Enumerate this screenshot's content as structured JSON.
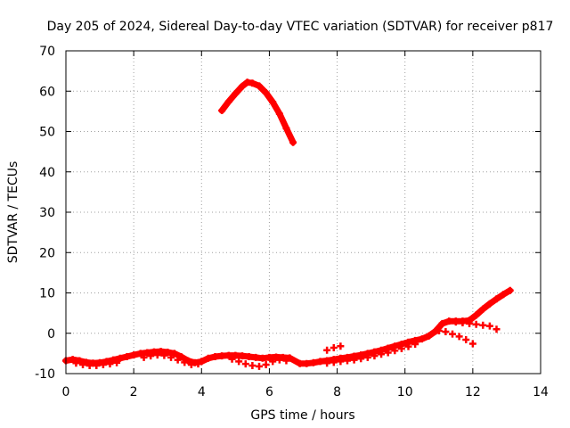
{
  "chart_data": {
    "type": "scatter",
    "title": "Day 205 of 2024, Sidereal Day-to-day VTEC variation (SDTVAR) for receiver p817",
    "xlabel": "GPS time / hours",
    "ylabel": "SDTVAR / TECUs",
    "xlim": [
      0,
      14
    ],
    "ylim": [
      -10,
      70
    ],
    "xticks": [
      "0",
      "2",
      "4",
      "6",
      "8",
      "10",
      "12",
      "14"
    ],
    "yticks": [
      "-10",
      "0",
      "10",
      "20",
      "30",
      "40",
      "50",
      "60",
      "70"
    ],
    "grid": true,
    "legend": "none",
    "marker_color": "#ff0000",
    "series": [
      {
        "points": [
          [
            4.6,
            55.2
          ],
          [
            4.8,
            57.4
          ],
          [
            5.0,
            59.4
          ],
          [
            5.2,
            61.2
          ],
          [
            5.35,
            62.2
          ],
          [
            5.5,
            62.0
          ],
          [
            5.7,
            61.3
          ],
          [
            5.9,
            59.6
          ],
          [
            6.1,
            57.3
          ],
          [
            6.3,
            54.4
          ],
          [
            6.5,
            50.8
          ],
          [
            6.7,
            47.3
          ]
        ]
      },
      {
        "points": [
          [
            0.0,
            -6.8
          ],
          [
            0.2,
            -6.5
          ],
          [
            0.4,
            -6.8
          ],
          [
            0.6,
            -7.2
          ],
          [
            0.8,
            -7.4
          ],
          [
            1.0,
            -7.3
          ],
          [
            1.2,
            -7.0
          ],
          [
            1.4,
            -6.6
          ],
          [
            1.6,
            -6.2
          ],
          [
            1.8,
            -5.8
          ],
          [
            2.0,
            -5.4
          ],
          [
            2.2,
            -5.0
          ],
          [
            2.4,
            -4.8
          ],
          [
            2.6,
            -4.6
          ],
          [
            2.8,
            -4.5
          ],
          [
            3.0,
            -4.7
          ],
          [
            3.2,
            -5.0
          ],
          [
            3.4,
            -5.8
          ],
          [
            3.6,
            -6.8
          ],
          [
            3.8,
            -7.3
          ],
          [
            4.0,
            -7.0
          ],
          [
            4.2,
            -6.2
          ],
          [
            4.4,
            -5.8
          ],
          [
            4.6,
            -5.6
          ],
          [
            4.8,
            -5.5
          ],
          [
            5.0,
            -5.5
          ],
          [
            5.2,
            -5.6
          ],
          [
            5.4,
            -5.8
          ],
          [
            5.6,
            -6.0
          ],
          [
            5.8,
            -6.2
          ],
          [
            6.0,
            -6.0
          ],
          [
            6.2,
            -5.9
          ],
          [
            6.4,
            -6.0
          ],
          [
            6.6,
            -6.1
          ],
          [
            6.9,
            -7.5
          ],
          [
            7.1,
            -7.5
          ],
          [
            7.3,
            -7.3
          ],
          [
            7.5,
            -7.0
          ],
          [
            7.7,
            -6.8
          ],
          [
            7.9,
            -6.5
          ],
          [
            8.1,
            -6.2
          ],
          [
            8.3,
            -6.0
          ],
          [
            8.5,
            -5.7
          ],
          [
            8.7,
            -5.4
          ],
          [
            8.9,
            -5.0
          ],
          [
            9.1,
            -4.6
          ],
          [
            9.3,
            -4.2
          ],
          [
            9.5,
            -3.7
          ],
          [
            9.7,
            -3.2
          ],
          [
            9.9,
            -2.7
          ],
          [
            10.1,
            -2.2
          ],
          [
            10.3,
            -1.8
          ],
          [
            10.5,
            -1.4
          ],
          [
            10.7,
            -0.7
          ],
          [
            10.9,
            0.5
          ],
          [
            11.1,
            2.4
          ],
          [
            11.3,
            3.0
          ],
          [
            11.5,
            3.0
          ],
          [
            11.7,
            3.0
          ],
          [
            11.9,
            3.2
          ],
          [
            12.1,
            4.5
          ],
          [
            12.3,
            6.0
          ],
          [
            12.5,
            7.3
          ],
          [
            12.7,
            8.5
          ],
          [
            12.9,
            9.6
          ],
          [
            13.1,
            10.6
          ]
        ]
      },
      {
        "points": [
          [
            0.3,
            -7.4
          ],
          [
            0.5,
            -7.8
          ],
          [
            0.7,
            -8.0
          ],
          [
            0.9,
            -8.0
          ],
          [
            1.1,
            -7.8
          ],
          [
            1.3,
            -7.6
          ],
          [
            1.5,
            -7.3
          ],
          [
            2.3,
            -6.0
          ],
          [
            2.5,
            -5.6
          ],
          [
            2.7,
            -5.4
          ],
          [
            2.9,
            -5.5
          ],
          [
            3.1,
            -6.0
          ],
          [
            3.3,
            -6.6
          ],
          [
            3.5,
            -7.2
          ],
          [
            3.7,
            -7.8
          ],
          [
            3.9,
            -7.6
          ],
          [
            4.9,
            -6.4
          ],
          [
            5.1,
            -7.0
          ],
          [
            5.3,
            -7.6
          ],
          [
            5.5,
            -8.0
          ],
          [
            5.7,
            -8.2
          ],
          [
            5.9,
            -7.8
          ],
          [
            6.1,
            -7.0
          ],
          [
            6.3,
            -6.6
          ],
          [
            6.5,
            -6.8
          ],
          [
            7.7,
            -7.4
          ],
          [
            7.9,
            -7.2
          ],
          [
            8.1,
            -7.0
          ],
          [
            8.3,
            -6.8
          ],
          [
            8.5,
            -6.6
          ],
          [
            8.7,
            -6.3
          ],
          [
            8.9,
            -6.0
          ],
          [
            9.1,
            -5.6
          ],
          [
            9.3,
            -5.2
          ],
          [
            9.5,
            -4.8
          ],
          [
            9.7,
            -4.3
          ],
          [
            9.9,
            -3.8
          ],
          [
            10.1,
            -3.3
          ],
          [
            10.3,
            -2.7
          ],
          [
            11.0,
            0.6
          ],
          [
            11.2,
            0.4
          ],
          [
            11.4,
            -0.2
          ],
          [
            11.6,
            -0.8
          ],
          [
            11.8,
            -1.6
          ],
          [
            12.0,
            -2.6
          ],
          [
            11.5,
            2.8
          ],
          [
            11.7,
            2.6
          ],
          [
            11.9,
            2.4
          ],
          [
            12.1,
            2.2
          ],
          [
            12.3,
            2.0
          ],
          [
            12.5,
            1.8
          ],
          [
            12.7,
            1.0
          ],
          [
            7.7,
            -4.2
          ],
          [
            7.9,
            -3.6
          ],
          [
            8.1,
            -3.2
          ]
        ]
      }
    ]
  }
}
